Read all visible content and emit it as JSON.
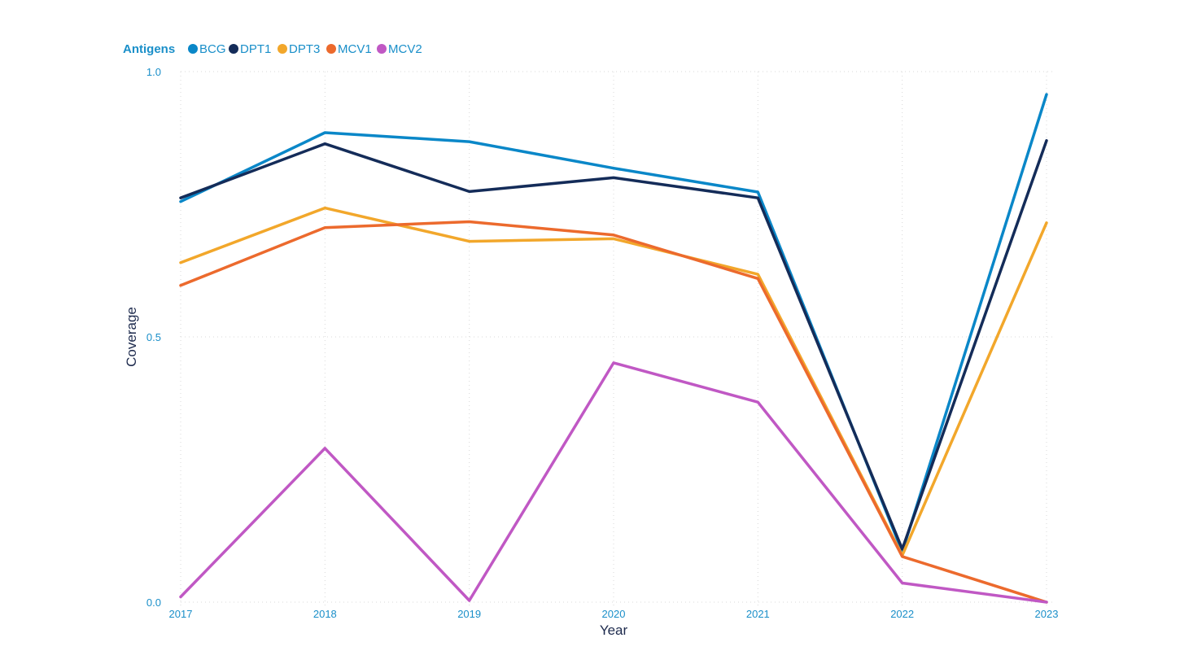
{
  "colors": {
    "accent": "#1a8fc9",
    "axis_title": "#1d2a4d",
    "grid": "#d9d9d9"
  },
  "legend": {
    "title": "Antigens"
  },
  "chart_data": {
    "type": "line",
    "title": "",
    "xlabel": "Year",
    "ylabel": "Coverage",
    "x": [
      "2017",
      "2018",
      "2019",
      "2020",
      "2021",
      "2022",
      "2023"
    ],
    "xlim": [
      2017,
      2023
    ],
    "ylim": [
      0,
      1
    ],
    "y_ticks": [
      "0.0",
      "0.5",
      "1.0"
    ],
    "grid": true,
    "legend_position": "top-left",
    "series": [
      {
        "name": "BCG",
        "color": "#0a87c8",
        "values": [
          0.755,
          0.885,
          0.868,
          0.818,
          0.773,
          0.095,
          0.957
        ]
      },
      {
        "name": "DPT1",
        "color": "#142c59",
        "values": [
          0.762,
          0.864,
          0.774,
          0.8,
          0.762,
          0.1,
          0.87
        ]
      },
      {
        "name": "DPT3",
        "color": "#f2a72b",
        "values": [
          0.64,
          0.743,
          0.68,
          0.685,
          0.618,
          0.088,
          0.715
        ]
      },
      {
        "name": "MCV1",
        "color": "#ec6a2d",
        "values": [
          0.597,
          0.706,
          0.717,
          0.692,
          0.61,
          0.086,
          0.0
        ]
      },
      {
        "name": "MCV2",
        "color": "#c058c4",
        "values": [
          0.01,
          0.29,
          0.003,
          0.451,
          0.377,
          0.036,
          0.0
        ]
      }
    ]
  }
}
